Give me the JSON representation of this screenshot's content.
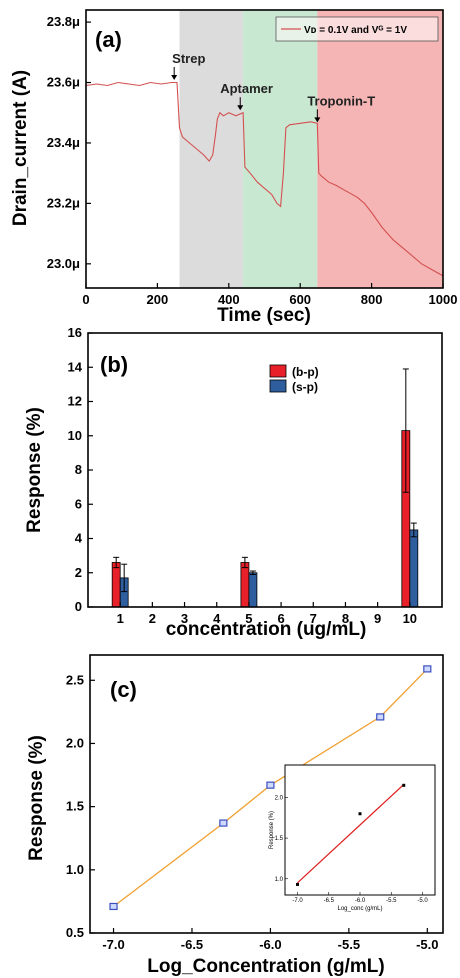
{
  "chart_data": [
    {
      "type": "line",
      "panel_label": "(a)",
      "xlabel": "Time (sec)",
      "ylabel": "Drain_current (A)",
      "xlim": [
        0,
        1000
      ],
      "ylim": [
        22.92,
        23.84
      ],
      "x_ticks": [
        0,
        200,
        400,
        600,
        800,
        1000
      ],
      "y_ticks": [
        23.0,
        23.2,
        23.4,
        23.6,
        23.8
      ],
      "y_tick_labels": [
        "23.0μ",
        "23.2μ",
        "23.4μ",
        "23.6μ",
        "23.8μ"
      ],
      "legend": {
        "entry": "Vᴅ = 0.1V and Vᴳ = 1V",
        "placement": "top-right"
      },
      "line_color": "#d45050",
      "regions": [
        {
          "x0": 262,
          "x1": 440,
          "color": "#dcdcdc"
        },
        {
          "x0": 440,
          "x1": 648,
          "color": "#c9e8d2"
        },
        {
          "x0": 648,
          "x1": 1000,
          "color": "#f5b5b5"
        }
      ],
      "annotations": [
        {
          "text": "Strep",
          "x": 247,
          "y": 23.605
        },
        {
          "text": "Aptamer",
          "x": 432,
          "y": 23.505
        },
        {
          "text": "Troponin-T",
          "x": 648,
          "y": 23.465
        }
      ],
      "series": [
        {
          "x": [
            0,
            30,
            60,
            90,
            120,
            150,
            180,
            210,
            240,
            255,
            262,
            270,
            290,
            310,
            330,
            345,
            355,
            362,
            368,
            375,
            385,
            400,
            420,
            440,
            445,
            460,
            480,
            500,
            520,
            535,
            545,
            553,
            560,
            570,
            600,
            630,
            648,
            652,
            660,
            680,
            700,
            730,
            760,
            780,
            800,
            830,
            860,
            900,
            940,
            970,
            1000
          ],
          "y": [
            23.59,
            23.595,
            23.59,
            23.6,
            23.595,
            23.59,
            23.6,
            23.595,
            23.6,
            23.6,
            23.45,
            23.42,
            23.4,
            23.38,
            23.36,
            23.34,
            23.36,
            23.42,
            23.48,
            23.5,
            23.49,
            23.5,
            23.49,
            23.5,
            23.32,
            23.3,
            23.27,
            23.25,
            23.23,
            23.2,
            23.19,
            23.3,
            23.45,
            23.46,
            23.465,
            23.47,
            23.465,
            23.3,
            23.29,
            23.27,
            23.26,
            23.24,
            23.22,
            23.2,
            23.17,
            23.12,
            23.08,
            23.04,
            23.0,
            22.98,
            22.96
          ]
        }
      ]
    },
    {
      "type": "bar",
      "panel_label": "(b)",
      "xlabel": "concentration (ug/mL)",
      "ylabel": "Response (%)",
      "xlim": [
        0,
        11
      ],
      "ylim": [
        0,
        16
      ],
      "x_ticks": [
        1,
        2,
        3,
        4,
        5,
        6,
        7,
        8,
        9,
        10
      ],
      "y_ticks": [
        0,
        2,
        4,
        6,
        8,
        10,
        12,
        14,
        16
      ],
      "legend_placement": "top-right",
      "categories": [
        1,
        5,
        10
      ],
      "series": [
        {
          "name": "(b-p)",
          "color": "#e8202a",
          "values": [
            2.6,
            2.6,
            10.3
          ],
          "errors": [
            0.3,
            0.3,
            3.6
          ]
        },
        {
          "name": "(s-p)",
          "color": "#2e5e9e",
          "values": [
            1.7,
            2.0,
            4.5
          ],
          "errors": [
            0.8,
            0.1,
            0.4
          ]
        }
      ]
    },
    {
      "type": "line",
      "panel_label": "(c)",
      "xlabel": "Log_Concentration (g/mL)",
      "ylabel": "Response (%)",
      "xlim": [
        -7.15,
        -4.9
      ],
      "ylim": [
        0.5,
        2.7
      ],
      "x_ticks": [
        -7.0,
        -6.5,
        -6.0,
        -5.5,
        -5.0
      ],
      "y_ticks": [
        0.5,
        1.0,
        1.5,
        2.0,
        2.5
      ],
      "line_color": "#f0a030",
      "marker_color": "#3a4fbf",
      "series": [
        {
          "x": [
            -7.0,
            -6.3,
            -6.0,
            -5.3,
            -5.0
          ],
          "y": [
            0.71,
            1.37,
            1.67,
            2.21,
            2.59
          ]
        }
      ],
      "inset": {
        "xlabel": "Log_conc (g/mL)",
        "ylabel": "Response (%)",
        "xlim": [
          -7.2,
          -4.8
        ],
        "ylim": [
          0.8,
          2.4
        ],
        "x_ticks": [
          -7.0,
          -6.5,
          -6.0,
          -5.5,
          -5.0
        ],
        "x_tick_labels": [
          "-7.0",
          "-6.5",
          "-6.0",
          "-5.5",
          "-5.0"
        ],
        "y_ticks": [
          1.0,
          1.5,
          2.0
        ],
        "y_tick_labels": [
          "1.0",
          "1.5",
          "2.0"
        ],
        "points": [
          {
            "x": -7.0,
            "y": 0.93
          },
          {
            "x": -6.0,
            "y": 1.8
          },
          {
            "x": -5.3,
            "y": 2.15
          }
        ],
        "fit": {
          "x": [
            -7.0,
            -5.3
          ],
          "y": [
            0.95,
            2.16
          ],
          "color": "#e02020"
        }
      }
    }
  ]
}
